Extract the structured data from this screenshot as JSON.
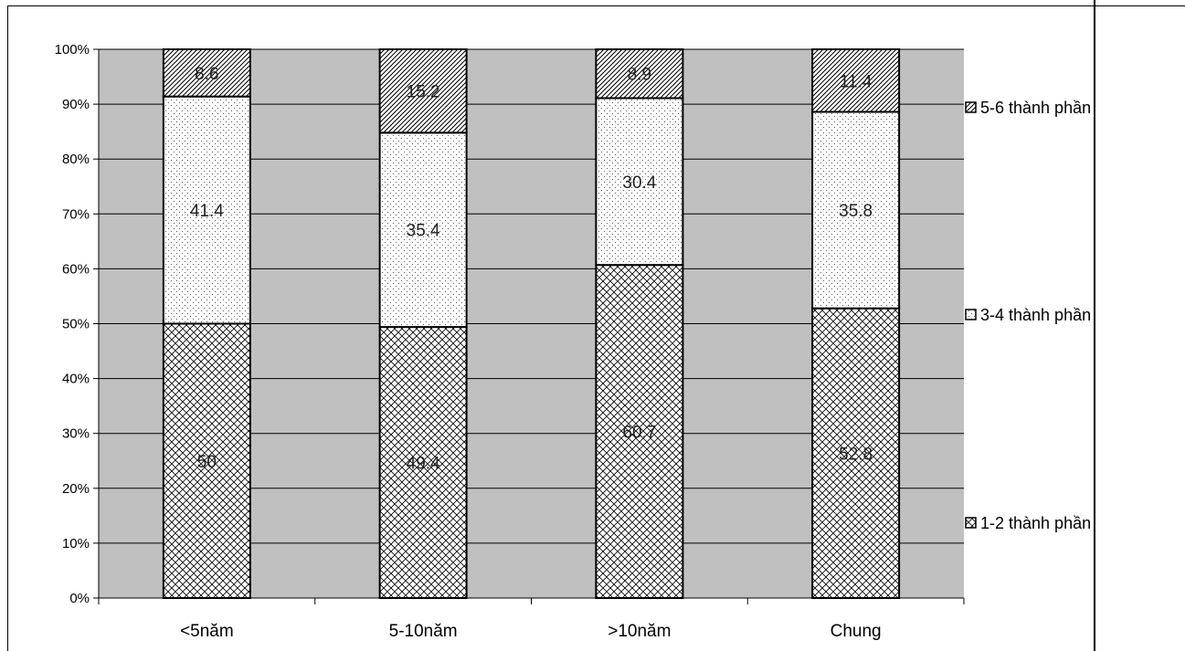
{
  "chart_data": {
    "type": "bar",
    "stacked": true,
    "categories": [
      "<5năm",
      "5-10năm",
      ">10năm",
      "Chung"
    ],
    "series": [
      {
        "name": "1-2 thành phần",
        "values": [
          50,
          49.4,
          60.7,
          52.8
        ],
        "pattern": "crosshatch"
      },
      {
        "name": "3-4 thành phần",
        "values": [
          41.4,
          35.4,
          30.4,
          35.8
        ],
        "pattern": "dots"
      },
      {
        "name": "5-6 thành phần",
        "values": [
          8.6,
          15.2,
          8.9,
          11.4
        ],
        "pattern": "diagonal"
      }
    ],
    "data_labels": [
      [
        "50",
        "49.4",
        "60.7",
        "52.8"
      ],
      [
        "41.4",
        "35.4",
        "30.4",
        "35.8"
      ],
      [
        "8.6",
        "15.2",
        "8.9",
        "11.4"
      ]
    ],
    "yticks": [
      "0%",
      "10%",
      "20%",
      "30%",
      "40%",
      "50%",
      "60%",
      "70%",
      "80%",
      "90%",
      "100%"
    ],
    "ylim": [
      0,
      100
    ],
    "grid": true,
    "plot_background": "#c0c0c0",
    "legend_position": "right",
    "title": "",
    "xlabel": "",
    "ylabel": ""
  }
}
